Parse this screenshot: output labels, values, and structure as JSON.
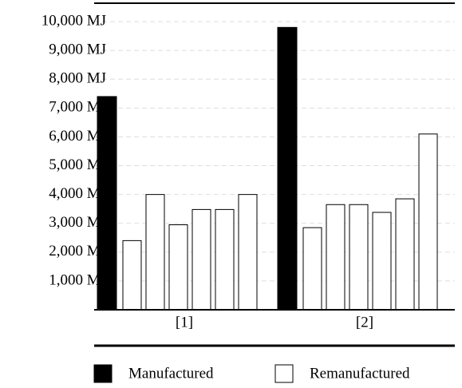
{
  "chart_data": {
    "type": "bar",
    "categories": [
      "[1]",
      "[2]"
    ],
    "series": [
      {
        "name": "Manufactured",
        "color": "#000000",
        "values": [
          7400,
          9800
        ]
      },
      {
        "name": "Remanufactured",
        "color": "#ffffff",
        "values": [
          [
            2400,
            4000,
            2950,
            3480,
            3480,
            4000
          ],
          [
            2850,
            3650,
            3650,
            3380,
            3850,
            6100
          ]
        ]
      }
    ],
    "ylim": [
      0,
      10640
    ],
    "yticks": [
      {
        "value": 1000,
        "label": "1,000 MJ"
      },
      {
        "value": 2000,
        "label": "2,000 MJ"
      },
      {
        "value": 3000,
        "label": "3,000 MJ"
      },
      {
        "value": 4000,
        "label": "4,000 MJ"
      },
      {
        "value": 5000,
        "label": "5,000 MJ"
      },
      {
        "value": 6000,
        "label": "6,000 MJ"
      },
      {
        "value": 7000,
        "label": "7,000 MJ"
      },
      {
        "value": 8000,
        "label": "8,000 MJ"
      },
      {
        "value": 9000,
        "label": "9,000 MJ"
      },
      {
        "value": 10000,
        "label": "10,000 MJ"
      }
    ],
    "grid": true
  }
}
